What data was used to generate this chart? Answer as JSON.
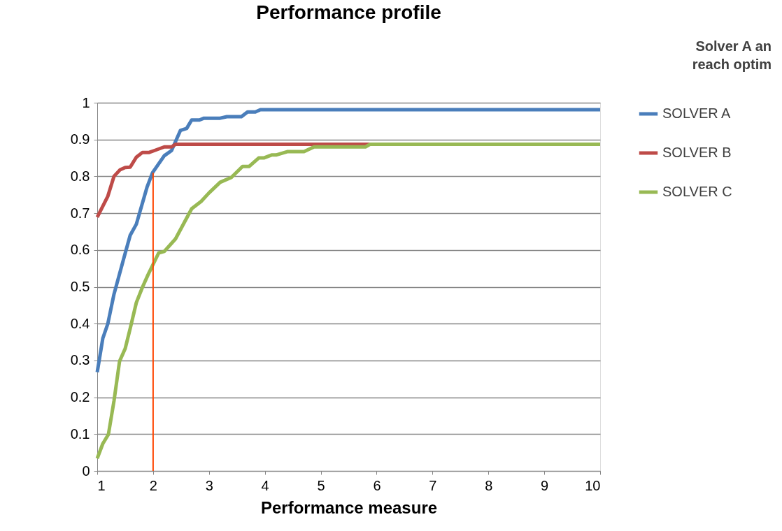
{
  "chart_data": {
    "type": "line",
    "title": "Performance profile",
    "xlabel": "Performance measure",
    "xlim": [
      1,
      10
    ],
    "xticks": [
      1,
      2,
      3,
      4,
      5,
      6,
      7,
      8,
      9,
      10
    ],
    "ylim": [
      0,
      1
    ],
    "yticks": [
      {
        "value": 0,
        "label": "0"
      },
      0.1,
      0.2,
      0.3,
      0.4,
      0.5,
      0.6,
      0.7,
      0.8,
      0.9,
      {
        "value": 1,
        "label": "1"
      }
    ],
    "grid": "y",
    "legend": "right",
    "marker": "none",
    "line_style": "solid",
    "annotations": [
      "Solver A an\nreach optim"
    ],
    "series": [
      {
        "name": "SOLVER A",
        "color": "#4a7ebb",
        "x": [
          1,
          1.1,
          1.19,
          1.3,
          1.48,
          1.59,
          1.7,
          1.89,
          1.99,
          2.2,
          2.33,
          2.49,
          2.6,
          2.69,
          2.83,
          2.91,
          3.2,
          3.32,
          3.58,
          3.69,
          3.83,
          3.92,
          10
        ],
        "values": [
          0.268,
          0.36,
          0.4,
          0.48,
          0.58,
          0.64,
          0.67,
          0.77,
          0.81,
          0.856,
          0.87,
          0.925,
          0.93,
          0.953,
          0.953,
          0.958,
          0.958,
          0.962,
          0.962,
          0.975,
          0.975,
          0.981,
          0.981
        ]
      },
      {
        "name": "SOLVER B",
        "color": "#be4b48",
        "x": [
          1,
          1.19,
          1.3,
          1.41,
          1.5,
          1.59,
          1.7,
          1.81,
          1.93,
          2.04,
          2.2,
          2.33,
          2.4,
          5.88
        ],
        "values": [
          0.689,
          0.746,
          0.8,
          0.818,
          0.824,
          0.825,
          0.852,
          0.865,
          0.865,
          0.871,
          0.88,
          0.88,
          0.887,
          0.887
        ]
      },
      {
        "name": "SOLVER C",
        "color": "#98b954",
        "x": [
          1,
          1.1,
          1.2,
          1.3,
          1.4,
          1.5,
          1.59,
          1.7,
          1.81,
          1.91,
          2.1,
          2.2,
          2.4,
          2.69,
          2.86,
          3.0,
          3.2,
          3.4,
          3.6,
          3.72,
          3.89,
          3.98,
          4.12,
          4.2,
          4.4,
          4.7,
          4.88,
          5.8,
          5.88,
          10
        ],
        "values": [
          0.034,
          0.074,
          0.099,
          0.19,
          0.298,
          0.332,
          0.387,
          0.457,
          0.499,
          0.533,
          0.592,
          0.596,
          0.63,
          0.712,
          0.732,
          0.755,
          0.784,
          0.797,
          0.827,
          0.827,
          0.85,
          0.85,
          0.858,
          0.858,
          0.867,
          0.867,
          0.88,
          0.88,
          0.887,
          0.887
        ]
      },
      {
        "color": "#ff4500",
        "x": [
          2,
          2
        ],
        "values": [
          0,
          0.81
        ]
      }
    ]
  }
}
